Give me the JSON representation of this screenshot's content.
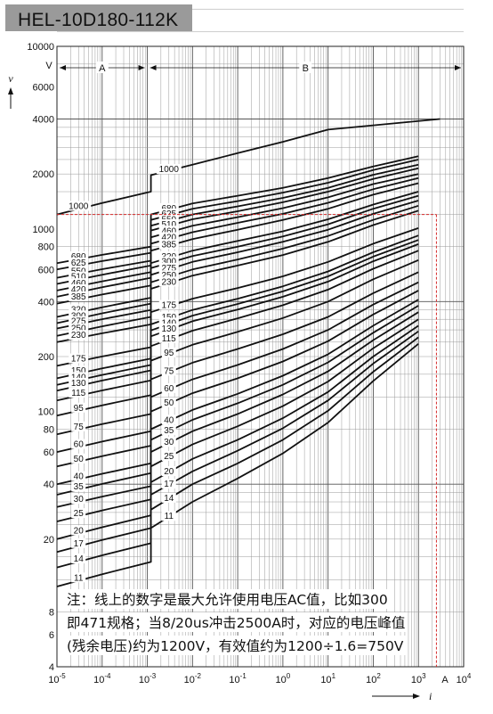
{
  "chart_data": {
    "type": "line",
    "title": "HEL-10D180-112K",
    "xlabel": "i",
    "xunit": "A",
    "ylabel": "v",
    "yunit": "V",
    "x_scale": "log",
    "y_scale": "log",
    "xlim": [
      1e-05,
      10000
    ],
    "ylim": [
      4,
      10000
    ],
    "grid": true,
    "x_ticks": [
      {
        "value": 1e-05,
        "mant": "10",
        "exp": "-5"
      },
      {
        "value": 0.0001,
        "mant": "10",
        "exp": "-4"
      },
      {
        "value": 0.001,
        "mant": "10",
        "exp": "-3"
      },
      {
        "value": 0.01,
        "mant": "10",
        "exp": "-2"
      },
      {
        "value": 0.1,
        "mant": "10",
        "exp": "-1"
      },
      {
        "value": 1,
        "mant": "10",
        "exp": "0"
      },
      {
        "value": 10,
        "mant": "10",
        "exp": "1"
      },
      {
        "value": 100,
        "mant": "10",
        "exp": "2"
      },
      {
        "value": 1000,
        "mant": "10",
        "exp": "3"
      },
      {
        "value": 10000,
        "mant": "10",
        "exp": "4"
      }
    ],
    "y_ticks": [
      {
        "value": 10000,
        "label": "10000"
      },
      {
        "value": 6000,
        "label": "6000"
      },
      {
        "value": 4000,
        "label": "4000"
      },
      {
        "value": 2000,
        "label": "2000"
      },
      {
        "value": 1000,
        "label": "1000"
      },
      {
        "value": 800,
        "label": "800"
      },
      {
        "value": 600,
        "label": "600"
      },
      {
        "value": 400,
        "label": "400"
      },
      {
        "value": 200,
        "label": "200"
      },
      {
        "value": 100,
        "label": "100"
      },
      {
        "value": 80,
        "label": "80"
      },
      {
        "value": 60,
        "label": "60"
      },
      {
        "value": 40,
        "label": "40"
      },
      {
        "value": 20,
        "label": "20"
      },
      {
        "value": 8,
        "label": "8"
      },
      {
        "value": 6,
        "label": "6"
      },
      {
        "value": 4,
        "label": "4"
      }
    ],
    "regions": [
      {
        "label": "A",
        "from": 1e-05,
        "to": 0.001
      },
      {
        "label": "B",
        "from": 0.001,
        "to": 10000
      }
    ],
    "reference_lines": {
      "current": 2500,
      "voltage": 1200
    },
    "series": [
      {
        "name": "1000",
        "left": [
          1200,
          1600
        ],
        "right": [
          1970,
          2250,
          2600,
          3000,
          3500,
          4000
        ]
      },
      {
        "name": "680",
        "left": [
          650,
          800
        ],
        "right": [
          1200,
          1380,
          1520,
          1680,
          1900,
          2200,
          2500
        ]
      },
      {
        "name": "625",
        "left": [
          600,
          740
        ],
        "right": [
          1120,
          1290,
          1420,
          1580,
          1790,
          2100,
          2400
        ]
      },
      {
        "name": "550",
        "left": [
          540,
          670
        ],
        "right": [
          1040,
          1200,
          1330,
          1480,
          1680,
          1980,
          2250
        ]
      },
      {
        "name": "510",
        "left": [
          500,
          630
        ],
        "right": [
          980,
          1130,
          1250,
          1400,
          1600,
          1880,
          2150
        ]
      },
      {
        "name": "460",
        "left": [
          460,
          580
        ],
        "right": [
          900,
          1040,
          1160,
          1300,
          1490,
          1760,
          2000
        ]
      },
      {
        "name": "420",
        "left": [
          425,
          540
        ],
        "right": [
          830,
          960,
          1080,
          1210,
          1390,
          1650,
          1900
        ]
      },
      {
        "name": "385",
        "left": [
          390,
          490
        ],
        "right": [
          760,
          880,
          990,
          1120,
          1290,
          1540,
          1780
        ]
      },
      {
        "name": "320",
        "left": [
          330,
          420
        ],
        "right": [
          650,
          760,
          860,
          970,
          1130,
          1360,
          1600
        ]
      },
      {
        "name": "300",
        "left": [
          305,
          390
        ],
        "right": [
          610,
          710,
          800,
          910,
          1060,
          1290,
          1520
        ]
      },
      {
        "name": "275",
        "left": [
          285,
          360
        ],
        "right": [
          560,
          660,
          745,
          850,
          990,
          1210,
          1430
        ]
      },
      {
        "name": "250",
        "left": [
          260,
          330
        ],
        "right": [
          510,
          600,
          680,
          780,
          915,
          1120,
          1340
        ]
      },
      {
        "name": "230",
        "left": [
          240,
          300
        ],
        "right": [
          470,
          555,
          630,
          720,
          850,
          1050,
          1260
        ]
      },
      {
        "name": "175",
        "left": [
          178,
          225
        ],
        "right": [
          350,
          415,
          475,
          550,
          660,
          830,
          1010
        ]
      },
      {
        "name": "150",
        "left": [
          152,
          195
        ],
        "right": [
          300,
          360,
          415,
          485,
          585,
          745,
          920
        ]
      },
      {
        "name": "140",
        "left": [
          140,
          180
        ],
        "right": [
          278,
          335,
          388,
          455,
          550,
          705,
          870
        ]
      },
      {
        "name": "130",
        "left": [
          130,
          168
        ],
        "right": [
          258,
          312,
          362,
          425,
          515,
          665,
          825
        ]
      },
      {
        "name": "115",
        "left": [
          115,
          148
        ],
        "right": [
          228,
          277,
          324,
          382,
          465,
          605,
          760
        ]
      },
      {
        "name": "95",
        "left": [
          95,
          123
        ],
        "right": [
          190,
          232,
          273,
          325,
          400,
          530,
          675
        ]
      },
      {
        "name": "75",
        "left": [
          75,
          97
        ],
        "right": [
          150,
          185,
          220,
          265,
          330,
          445,
          580
        ]
      },
      {
        "name": "60",
        "left": [
          60,
          78
        ],
        "right": [
          120,
          150,
          180,
          220,
          280,
          385,
          510
        ]
      },
      {
        "name": "50",
        "left": [
          50,
          65
        ],
        "right": [
          100,
          126,
          152,
          188,
          243,
          340,
          460
        ]
      },
      {
        "name": "40",
        "left": [
          40,
          52
        ],
        "right": [
          80,
          102,
          125,
          157,
          206,
          295,
          410
        ]
      },
      {
        "name": "35",
        "left": [
          35,
          46
        ],
        "right": [
          70,
          90,
          111,
          140,
          186,
          270,
          380
        ]
      },
      {
        "name": "30",
        "left": [
          30,
          39
        ],
        "right": [
          60,
          78,
          97,
          124,
          166,
          246,
          350
        ]
      },
      {
        "name": "25",
        "left": [
          25,
          33
        ],
        "right": [
          50,
          66,
          83,
          107,
          146,
          222,
          320
        ]
      },
      {
        "name": "20",
        "left": [
          20,
          27
        ],
        "right": [
          41,
          55,
          70,
          92,
          128,
          200,
          295
        ]
      },
      {
        "name": "17",
        "left": [
          17,
          23
        ],
        "right": [
          35,
          47,
          61,
          81,
          115,
          183,
          275
        ]
      },
      {
        "name": "14",
        "left": [
          14,
          19
        ],
        "right": [
          29,
          40,
          52,
          70,
          101,
          165,
          255
        ]
      },
      {
        "name": "11",
        "left": [
          11,
          15
        ],
        "right": [
          23,
          32,
          43,
          59,
          87,
          147,
          235
        ]
      }
    ]
  },
  "note": {
    "line1": "注：线上的数字是最大允许使用电压AC值，比如300",
    "line2": "即471规格；当8/20us冲击2500A时，对应的电压峰值",
    "line3": "(残余电压)约为1200V，有效值约为1200÷1.6=750V"
  }
}
